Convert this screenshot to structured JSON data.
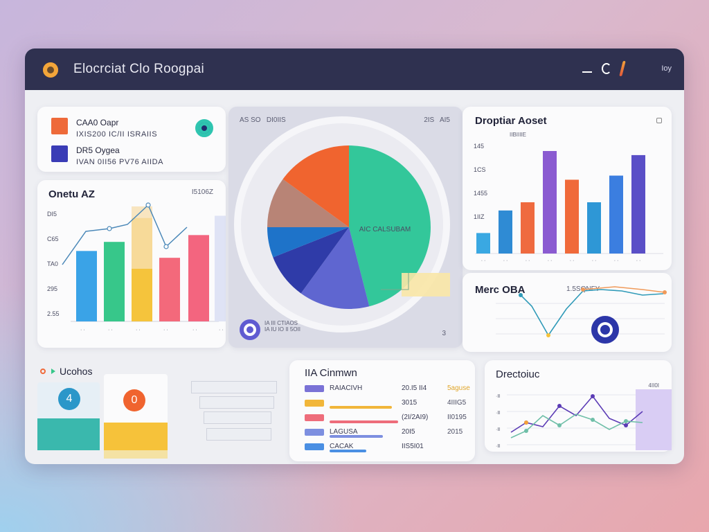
{
  "app": {
    "title": "Elocrciat Clo Roogpai",
    "user_label": "Ioy"
  },
  "kpi": {
    "items": [
      {
        "title": "CAA0 Oapr",
        "sub": "IXIS200 IC/II ISRAIIS",
        "color": "#ee6a3a"
      },
      {
        "title": "DR5 Oygea",
        "sub": "IVAN 0II56 PV76 AIIDA",
        "color": "#3a3cb6"
      }
    ]
  },
  "combo": {
    "title": "Onetu AZ",
    "date": "I5106Z",
    "yticks": [
      "DI5",
      "C65",
      "TA0",
      "295",
      "2.55"
    ]
  },
  "pie": {
    "header_left": "AS SO   DI0IIS",
    "header_right": "2IS   AI5",
    "center_label": "AIC CALSUBAM",
    "footer_label": "IA III CTIAOS\nIA IU IO II 5OII",
    "footer_num": "3"
  },
  "popular": {
    "title": "Droptiar Aoset",
    "subtitle": "IIBIIIIE",
    "yticks": [
      "145",
      "1CS",
      "1455",
      "1IIZ"
    ]
  },
  "metric": {
    "title": "Merc OBA",
    "date": "1.5SQNFY"
  },
  "users": {
    "title": "Ucohos",
    "tiles": [
      "4",
      "0"
    ]
  },
  "breakdown": {
    "title": "IIA Cinmwn",
    "rows": [
      {
        "label": "RAIACIVH",
        "value": "20.I5 II4",
        "extra": "5aguse",
        "color": "#7a72d6",
        "fill": 0.0
      },
      {
        "label": "",
        "value": "3015",
        "extra": "4IIIG5",
        "color": "#f1b63a",
        "fill": 0.82
      },
      {
        "label": "",
        "value": "(2I/2AI9)",
        "extra": "II0195",
        "color": "#ee6d7b",
        "fill": 0.9
      },
      {
        "label": "LAGUSA",
        "value": "20I5",
        "extra": "2015",
        "color": "#7d8fe0",
        "fill": 0.7
      },
      {
        "label": "CACAK",
        "value": "IIS5I01",
        "extra": "",
        "color": "#4a8fe3",
        "fill": 0.48
      }
    ]
  },
  "directory": {
    "title": "Drectoiuc",
    "legend": "4II0I"
  },
  "chart_data": [
    {
      "type": "bar",
      "title": "Onetu AZ",
      "yticks": [
        "DI5",
        "C65",
        "TA0",
        "295",
        "2.55"
      ],
      "series": [
        {
          "values": [
            62,
            70,
            91,
            56,
            76,
            93
          ]
        }
      ],
      "colors": [
        "#3aa3e7",
        "#37c78a",
        "#f5c43c",
        "#f3697b",
        "#f3657f",
        "#dfe3f5"
      ],
      "line": [
        52,
        70,
        72,
        78,
        82,
        92
      ]
    },
    {
      "type": "pie",
      "values": [
        46,
        14,
        9,
        6,
        10,
        15
      ],
      "colors": [
        "#33c79a",
        "#5f66d0",
        "#2f3ba8",
        "#1e73c9",
        "#b88476",
        "#f0642f"
      ]
    },
    {
      "type": "bar",
      "title": "Droptiar Aoset",
      "yticks": [
        "145",
        "1CS",
        "1455",
        "1IIZ"
      ],
      "values": [
        20,
        42,
        50,
        100,
        72,
        50,
        76,
        96
      ],
      "colors": [
        "#3aa8e2",
        "#2f8bd4",
        "#ef6a3f",
        "#8b5bd1",
        "#f06a3a",
        "#2e97d6",
        "#3b7ee0",
        "#5a4fc7"
      ]
    },
    {
      "type": "line",
      "title": "Merc OBA",
      "values": [
        78,
        62,
        20,
        58,
        84,
        86,
        84,
        78,
        80
      ]
    },
    {
      "type": "line",
      "title": "Drectoiuc",
      "series": [
        {
          "values": [
            20,
            34,
            28,
            58,
            44,
            72,
            40,
            30,
            50
          ]
        },
        {
          "values": [
            12,
            22,
            44,
            30,
            46,
            38,
            24,
            36,
            34
          ]
        }
      ],
      "colors": [
        "#5b3bb5",
        "#6fbfa8"
      ]
    }
  ]
}
